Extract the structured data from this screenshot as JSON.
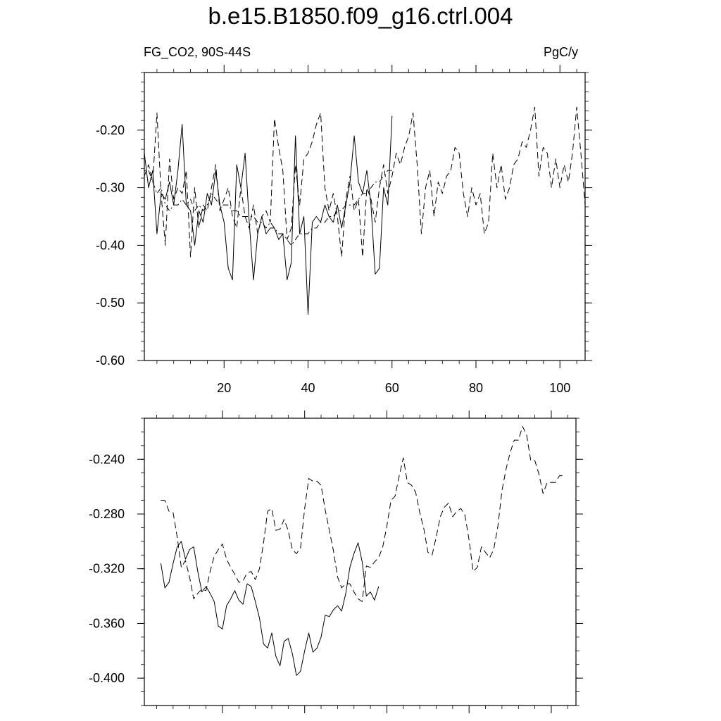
{
  "title": "b.e15.B1850.f09_g16.ctrl.004",
  "subtitle_left": "FG_CO2, 90S-44S",
  "subtitle_right": "PgC/y",
  "chart_data": [
    {
      "type": "line",
      "xlim": [
        1,
        106
      ],
      "ylim": [
        -0.6,
        -0.1
      ],
      "x_ticks": [
        20,
        40,
        60,
        80,
        100
      ],
      "y_ticks": [
        -0.6,
        -0.5,
        -0.4,
        -0.3,
        -0.2
      ],
      "y_tick_labels": [
        "-0.60",
        "-0.50",
        "-0.40",
        "-0.30",
        "-0.20"
      ],
      "series": [
        {
          "style": "solid",
          "x": [
            1,
            2,
            3,
            4,
            5,
            6,
            7,
            8,
            9,
            10,
            11,
            12,
            13,
            14,
            15,
            16,
            17,
            18,
            19,
            20,
            21,
            22,
            23,
            24,
            25,
            26,
            27,
            28,
            29,
            30,
            31,
            32,
            33,
            34,
            35,
            36,
            37,
            38,
            39,
            40,
            41,
            42,
            43,
            44,
            45,
            46,
            47,
            48,
            49,
            50,
            51,
            52,
            53,
            54,
            55,
            56,
            57,
            58,
            59,
            60
          ],
          "y": [
            -0.24,
            -0.3,
            -0.27,
            -0.38,
            -0.31,
            -0.32,
            -0.29,
            -0.33,
            -0.27,
            -0.19,
            -0.33,
            -0.34,
            -0.4,
            -0.34,
            -0.36,
            -0.31,
            -0.33,
            -0.27,
            -0.33,
            -0.36,
            -0.44,
            -0.46,
            -0.26,
            -0.3,
            -0.24,
            -0.36,
            -0.46,
            -0.38,
            -0.35,
            -0.38,
            -0.37,
            -0.37,
            -0.39,
            -0.38,
            -0.46,
            -0.43,
            -0.21,
            -0.38,
            -0.35,
            -0.52,
            -0.36,
            -0.35,
            -0.36,
            -0.33,
            -0.35,
            -0.36,
            -0.33,
            -0.37,
            -0.33,
            -0.29,
            -0.21,
            -0.29,
            -0.31,
            -0.27,
            -0.33,
            -0.45,
            -0.44,
            -0.3,
            -0.33,
            -0.175
          ]
        },
        {
          "style": "dashed",
          "x": [
            1,
            2,
            3,
            4,
            5,
            6,
            7,
            8,
            9,
            10,
            11,
            12,
            13,
            14,
            15,
            16,
            17,
            18,
            19,
            20,
            21,
            22,
            23,
            24,
            25,
            26,
            27,
            28,
            29,
            30,
            31,
            32,
            33,
            34,
            35,
            36,
            37,
            38,
            39,
            40,
            41,
            42,
            43,
            44,
            45,
            46,
            47,
            48,
            49,
            50,
            51,
            52,
            53,
            54,
            55,
            56,
            57,
            58,
            59,
            60,
            61,
            62,
            63,
            64,
            65,
            66,
            67,
            68,
            69,
            70,
            71,
            72,
            73,
            74,
            75,
            76,
            77,
            78,
            79,
            80,
            81,
            82,
            83,
            84,
            85,
            86,
            87,
            88,
            89,
            90,
            91,
            92,
            93,
            94,
            95,
            96,
            97,
            98,
            99,
            100,
            101,
            102,
            103,
            104,
            105,
            106
          ],
          "y": [
            -0.28,
            -0.26,
            -0.29,
            -0.17,
            -0.31,
            -0.4,
            -0.25,
            -0.32,
            -0.3,
            -0.31,
            -0.27,
            -0.42,
            -0.3,
            -0.37,
            -0.33,
            -0.34,
            -0.3,
            -0.26,
            -0.34,
            -0.32,
            -0.3,
            -0.35,
            -0.37,
            -0.3,
            -0.35,
            -0.37,
            -0.33,
            -0.38,
            -0.35,
            -0.34,
            -0.36,
            -0.18,
            -0.23,
            -0.27,
            -0.39,
            -0.37,
            -0.26,
            -0.33,
            -0.25,
            -0.24,
            -0.22,
            -0.19,
            -0.17,
            -0.3,
            -0.34,
            -0.31,
            -0.35,
            -0.42,
            -0.32,
            -0.28,
            -0.34,
            -0.32,
            -0.42,
            -0.3,
            -0.32,
            -0.36,
            -0.3,
            -0.26,
            -0.31,
            -0.28,
            -0.24,
            -0.26,
            -0.23,
            -0.21,
            -0.17,
            -0.26,
            -0.38,
            -0.3,
            -0.27,
            -0.35,
            -0.29,
            -0.31,
            -0.28,
            -0.27,
            -0.23,
            -0.24,
            -0.31,
            -0.35,
            -0.3,
            -0.33,
            -0.31,
            -0.38,
            -0.36,
            -0.24,
            -0.3,
            -0.26,
            -0.32,
            -0.3,
            -0.26,
            -0.25,
            -0.22,
            -0.23,
            -0.2,
            -0.16,
            -0.28,
            -0.23,
            -0.24,
            -0.3,
            -0.25,
            -0.3,
            -0.26,
            -0.29,
            -0.24,
            -0.16,
            -0.24,
            -0.33
          ]
        },
        {
          "style": "dash-dot",
          "x": [
            1,
            2,
            3,
            4,
            5,
            6,
            7,
            8,
            9,
            10,
            11,
            12,
            13,
            14,
            15,
            16,
            17,
            18,
            19,
            20,
            21,
            22,
            23,
            24,
            25,
            26,
            27,
            28,
            29,
            30,
            31,
            32,
            33,
            34,
            35,
            36,
            37,
            38,
            39,
            40,
            41,
            42,
            43,
            44,
            45,
            46,
            47,
            48,
            49,
            50,
            51,
            52,
            53,
            54,
            55,
            56,
            57,
            58,
            59,
            60
          ],
          "y": [
            -0.27,
            -0.27,
            -0.29,
            -0.31,
            -0.3,
            -0.33,
            -0.34,
            -0.33,
            -0.33,
            -0.32,
            -0.33,
            -0.32,
            -0.34,
            -0.33,
            -0.34,
            -0.33,
            -0.31,
            -0.32,
            -0.33,
            -0.33,
            -0.33,
            -0.34,
            -0.34,
            -0.35,
            -0.35,
            -0.35,
            -0.35,
            -0.36,
            -0.36,
            -0.37,
            -0.36,
            -0.37,
            -0.38,
            -0.38,
            -0.39,
            -0.4,
            -0.39,
            -0.38,
            -0.38,
            -0.38,
            -0.37,
            -0.37,
            -0.36,
            -0.36,
            -0.35,
            -0.35,
            -0.34,
            -0.34,
            -0.33,
            -0.33,
            -0.33,
            -0.32,
            -0.31,
            -0.31,
            -0.3,
            -0.29,
            -0.29,
            -0.28,
            -0.27,
            -0.27
          ]
        }
      ]
    },
    {
      "type": "line",
      "xlim": [
        1,
        106
      ],
      "ylim": [
        -0.42,
        -0.21
      ],
      "x_ticks": [
        20,
        40,
        60,
        80,
        100
      ],
      "y_ticks": [
        -0.4,
        -0.36,
        -0.32,
        -0.28,
        -0.24
      ],
      "y_tick_labels": [
        "-0.400",
        "-0.360",
        "-0.320",
        "-0.280",
        "-0.240"
      ],
      "series": [
        {
          "style": "solid",
          "x": [
            5,
            6,
            7,
            8,
            9,
            10,
            11,
            12,
            13,
            14,
            15,
            16,
            17,
            18,
            19,
            20,
            21,
            22,
            23,
            24,
            25,
            26,
            27,
            28,
            29,
            30,
            31,
            32,
            33,
            34,
            35,
            36,
            37,
            38,
            39,
            40,
            41,
            42,
            43,
            44,
            45,
            46,
            47,
            48,
            49,
            50,
            51,
            52,
            53,
            54,
            55,
            56,
            57,
            58
          ],
          "y": [
            -0.316,
            -0.334,
            -0.33,
            -0.316,
            -0.304,
            -0.3,
            -0.313,
            -0.306,
            -0.304,
            -0.322,
            -0.337,
            -0.333,
            -0.338,
            -0.344,
            -0.362,
            -0.364,
            -0.347,
            -0.342,
            -0.336,
            -0.343,
            -0.346,
            -0.331,
            -0.333,
            -0.344,
            -0.356,
            -0.375,
            -0.378,
            -0.367,
            -0.384,
            -0.391,
            -0.373,
            -0.371,
            -0.382,
            -0.398,
            -0.395,
            -0.38,
            -0.367,
            -0.381,
            -0.378,
            -0.37,
            -0.354,
            -0.355,
            -0.35,
            -0.347,
            -0.351,
            -0.338,
            -0.319,
            -0.309,
            -0.301,
            -0.315,
            -0.34,
            -0.337,
            -0.343,
            -0.333
          ]
        },
        {
          "style": "dashed",
          "x": [
            5,
            6,
            7,
            8,
            9,
            10,
            11,
            12,
            13,
            14,
            15,
            16,
            17,
            18,
            19,
            20,
            21,
            22,
            23,
            24,
            25,
            26,
            27,
            28,
            29,
            30,
            31,
            32,
            33,
            34,
            35,
            36,
            37,
            38,
            39,
            40,
            41,
            42,
            43,
            44,
            45,
            46,
            47,
            48,
            49,
            50,
            51,
            52,
            53,
            54,
            55,
            56,
            57,
            58,
            59,
            60,
            61,
            62,
            63,
            64,
            65,
            66,
            67,
            68,
            69,
            70,
            71,
            72,
            73,
            74,
            75,
            76,
            77,
            78,
            79,
            80,
            81,
            82,
            83,
            84,
            85,
            86,
            87,
            88,
            89,
            90,
            91,
            92,
            93,
            94,
            95,
            96,
            97,
            98,
            99,
            100,
            101,
            102,
            103
          ],
          "y": [
            -0.27,
            -0.27,
            -0.278,
            -0.279,
            -0.297,
            -0.319,
            -0.314,
            -0.326,
            -0.342,
            -0.338,
            -0.335,
            -0.336,
            -0.322,
            -0.311,
            -0.306,
            -0.302,
            -0.313,
            -0.319,
            -0.324,
            -0.33,
            -0.329,
            -0.323,
            -0.322,
            -0.328,
            -0.32,
            -0.301,
            -0.278,
            -0.276,
            -0.292,
            -0.291,
            -0.284,
            -0.292,
            -0.306,
            -0.309,
            -0.305,
            -0.276,
            -0.254,
            -0.256,
            -0.256,
            -0.259,
            -0.277,
            -0.292,
            -0.307,
            -0.326,
            -0.334,
            -0.331,
            -0.331,
            -0.337,
            -0.342,
            -0.344,
            -0.318,
            -0.319,
            -0.315,
            -0.312,
            -0.304,
            -0.289,
            -0.27,
            -0.267,
            -0.252,
            -0.239,
            -0.257,
            -0.259,
            -0.264,
            -0.279,
            -0.291,
            -0.308,
            -0.31,
            -0.297,
            -0.282,
            -0.275,
            -0.272,
            -0.282,
            -0.278,
            -0.276,
            -0.281,
            -0.299,
            -0.322,
            -0.319,
            -0.304,
            -0.308,
            -0.312,
            -0.306,
            -0.289,
            -0.263,
            -0.247,
            -0.235,
            -0.226,
            -0.226,
            -0.216,
            -0.222,
            -0.241,
            -0.241,
            -0.251,
            -0.265,
            -0.257,
            -0.257,
            -0.257,
            -0.252,
            -0.252
          ]
        }
      ]
    }
  ]
}
